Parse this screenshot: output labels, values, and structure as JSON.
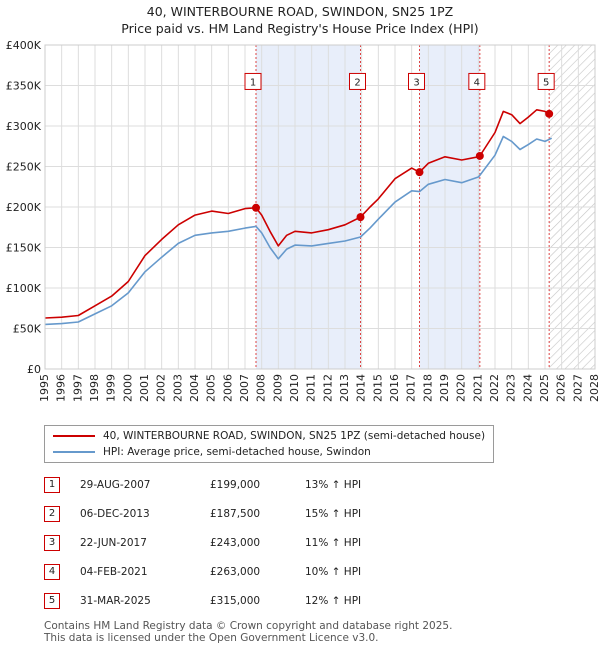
{
  "title_line1": "40, WINTERBOURNE ROAD, SWINDON, SN25 1PZ",
  "title_line2": "Price paid vs. HM Land Registry's House Price Index (HPI)",
  "chart_data": {
    "type": "line",
    "xlim": [
      1995,
      2028
    ],
    "ylim": [
      0,
      400000
    ],
    "x_ticks": [
      "1995",
      "1996",
      "1997",
      "1998",
      "1999",
      "2000",
      "2001",
      "2002",
      "2003",
      "2004",
      "2005",
      "2006",
      "2007",
      "2008",
      "2009",
      "2010",
      "2011",
      "2012",
      "2013",
      "2014",
      "2015",
      "2016",
      "2017",
      "2018",
      "2019",
      "2020",
      "2021",
      "2022",
      "2023",
      "2024",
      "2025",
      "2026",
      "2027",
      "2028"
    ],
    "y_ticks": [
      {
        "value": 0,
        "label": "£0"
      },
      {
        "value": 50000,
        "label": "£50K"
      },
      {
        "value": 100000,
        "label": "£100K"
      },
      {
        "value": 150000,
        "label": "£150K"
      },
      {
        "value": 200000,
        "label": "£200K"
      },
      {
        "value": 250000,
        "label": "£250K"
      },
      {
        "value": 300000,
        "label": "£300K"
      },
      {
        "value": 350000,
        "label": "£350K"
      },
      {
        "value": 400000,
        "label": "£400K"
      }
    ],
    "shaded_spans": [
      [
        2007.66,
        2013.93
      ],
      [
        2017.47,
        2021.09
      ]
    ],
    "future_from": 2025.25,
    "series": [
      {
        "name": "40, WINTERBOURNE ROAD, SWINDON, SN25 1PZ (semi-detached house)",
        "color": "#cc0000",
        "x": [
          1995,
          1996,
          1997,
          1998,
          1999,
          2000,
          2001,
          2002,
          2003,
          2004,
          2005,
          2006,
          2007,
          2007.66,
          2008,
          2008.5,
          2009,
          2009.5,
          2010,
          2011,
          2012,
          2013,
          2013.93,
          2014.5,
          2015,
          2016,
          2017,
          2017.47,
          2018,
          2019,
          2020,
          2021,
          2021.09,
          2022,
          2022.5,
          2023,
          2023.5,
          2024,
          2024.5,
          2025,
          2025.25
        ],
        "y": [
          63000,
          64000,
          66000,
          78000,
          90000,
          108000,
          140000,
          160000,
          178000,
          190000,
          195000,
          192000,
          198000,
          199000,
          190000,
          170000,
          152000,
          165000,
          170000,
          168000,
          172000,
          178000,
          187500,
          200000,
          210000,
          235000,
          248000,
          243000,
          254000,
          262000,
          258000,
          262000,
          263000,
          292000,
          318000,
          314000,
          303000,
          311000,
          320000,
          318000,
          315000
        ]
      },
      {
        "name": "HPI: Average price, semi-detached house, Swindon",
        "color": "#6699cc",
        "x": [
          1995,
          1996,
          1997,
          1998,
          1999,
          2000,
          2001,
          2002,
          2003,
          2004,
          2005,
          2006,
          2007,
          2007.66,
          2008,
          2008.5,
          2009,
          2009.5,
          2010,
          2011,
          2012,
          2013,
          2013.93,
          2014.5,
          2015,
          2016,
          2017,
          2017.47,
          2018,
          2019,
          2020,
          2021,
          2021.09,
          2022,
          2022.5,
          2023,
          2023.5,
          2024,
          2024.5,
          2025,
          2025.4
        ],
        "y": [
          55000,
          56000,
          58000,
          68000,
          78000,
          94000,
          120000,
          138000,
          155000,
          165000,
          168000,
          170000,
          174000,
          176000,
          168000,
          150000,
          136000,
          148000,
          153000,
          152000,
          155000,
          158000,
          163000,
          174000,
          185000,
          206000,
          220000,
          219000,
          228000,
          234000,
          230000,
          237000,
          239000,
          264000,
          287000,
          281000,
          271000,
          277000,
          284000,
          281000,
          285000
        ]
      }
    ],
    "sales": [
      {
        "label": "1",
        "date": 2007.66,
        "price": 199000
      },
      {
        "label": "2",
        "date": 2013.93,
        "price": 187500
      },
      {
        "label": "3",
        "date": 2017.47,
        "price": 243000
      },
      {
        "label": "4",
        "date": 2021.09,
        "price": 263000
      },
      {
        "label": "5",
        "date": 2025.25,
        "price": 315000
      }
    ]
  },
  "legend": {
    "entry1": "40, WINTERBOURNE ROAD, SWINDON, SN25 1PZ (semi-detached house)",
    "entry2": "HPI: Average price, semi-detached house, Swindon",
    "color1": "#cc0000",
    "color2": "#6699cc"
  },
  "sales_table": [
    {
      "num": "1",
      "date": "29-AUG-2007",
      "price": "£199,000",
      "hpi": "13% ↑ HPI"
    },
    {
      "num": "2",
      "date": "06-DEC-2013",
      "price": "£187,500",
      "hpi": "15% ↑ HPI"
    },
    {
      "num": "3",
      "date": "22-JUN-2017",
      "price": "£243,000",
      "hpi": "11% ↑ HPI"
    },
    {
      "num": "4",
      "date": "04-FEB-2021",
      "price": "£263,000",
      "hpi": "10% ↑ HPI"
    },
    {
      "num": "5",
      "date": "31-MAR-2025",
      "price": "£315,000",
      "hpi": "12% ↑ HPI"
    }
  ],
  "footer_line1": "Contains HM Land Registry data © Crown copyright and database right 2025.",
  "footer_line2": "This data is licensed under the Open Government Licence v3.0."
}
